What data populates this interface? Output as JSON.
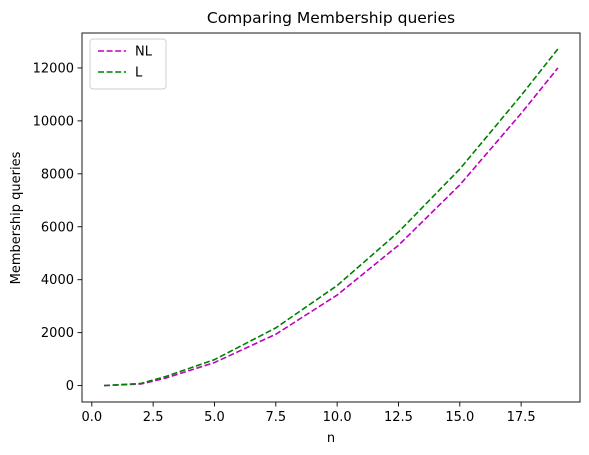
{
  "chart_data": {
    "type": "line",
    "title": "Comparing Membership queries",
    "xlabel": "n",
    "ylabel": "Membership queries",
    "xlim": [
      -0.4,
      19.9
    ],
    "ylim": [
      -620,
      13320
    ],
    "xticks": [
      0.0,
      2.5,
      5.0,
      7.5,
      10.0,
      12.5,
      15.0,
      17.5
    ],
    "xtick_labels": [
      "0.0",
      "2.5",
      "5.0",
      "7.5",
      "10.0",
      "12.5",
      "15.0",
      "17.5"
    ],
    "yticks": [
      0,
      2000,
      4000,
      6000,
      8000,
      10000,
      12000
    ],
    "ytick_labels": [
      "0",
      "2000",
      "4000",
      "6000",
      "8000",
      "10000",
      "12000"
    ],
    "grid": false,
    "legend_position": "upper-left",
    "x": [
      0.5,
      2.0,
      3.0,
      5.0,
      7.5,
      10.0,
      12.5,
      15.0,
      17.5,
      19.0
    ],
    "series": [
      {
        "name": "NL",
        "color": "#bf00bf",
        "style": "dashed",
        "values": [
          0,
          60,
          280,
          870,
          1940,
          3420,
          5300,
          7580,
          10280,
          12000
        ]
      },
      {
        "name": "L",
        "color": "#008000",
        "style": "dashed",
        "values": [
          0,
          80,
          340,
          980,
          2180,
          3780,
          5800,
          8180,
          10960,
          12720
        ]
      }
    ]
  }
}
